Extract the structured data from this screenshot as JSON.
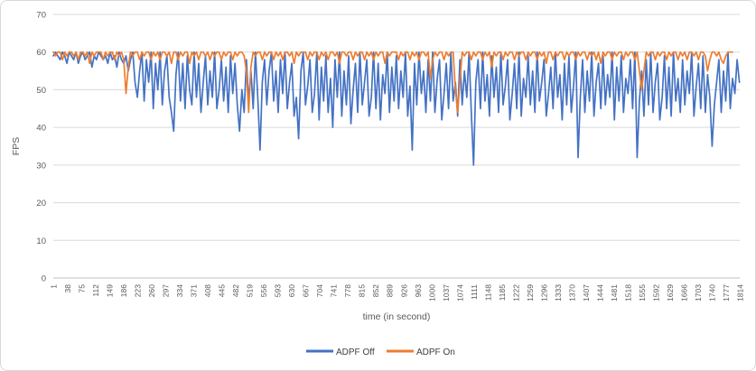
{
  "chart_data": {
    "type": "line",
    "title": "",
    "xlabel": "time (in second)",
    "ylabel": "FPS",
    "ylim": [
      0,
      70
    ],
    "grid": true,
    "legend_position": "bottom",
    "y_ticks": [
      0,
      10,
      20,
      30,
      40,
      50,
      60,
      70
    ],
    "x_tick_labels": [
      "1",
      "38",
      "75",
      "112",
      "149",
      "186",
      "223",
      "260",
      "297",
      "334",
      "371",
      "408",
      "445",
      "482",
      "519",
      "556",
      "593",
      "630",
      "667",
      "704",
      "741",
      "778",
      "815",
      "852",
      "889",
      "926",
      "963",
      "1000",
      "1037",
      "1074",
      "1111",
      "1148",
      "1185",
      "1222",
      "1259",
      "1296",
      "1333",
      "1370",
      "1407",
      "1444",
      "1481",
      "1518",
      "1555",
      "1592",
      "1629",
      "1666",
      "1703",
      "1740",
      "1777",
      "1814"
    ],
    "x_tick_step": 37,
    "x_start": 1,
    "x_step": 6,
    "x_max": 1814,
    "colors": {
      "grid": "#d9d9d9",
      "axis": "#bfbfbf",
      "text": "#595959"
    },
    "series": [
      {
        "name": "ADPF Off",
        "color": "#4472C4",
        "values": [
          59,
          60,
          59,
          58,
          60,
          59,
          57,
          60,
          59,
          58,
          60,
          57,
          59,
          60,
          58,
          59,
          60,
          56,
          59,
          58,
          60,
          59,
          58,
          59,
          57,
          60,
          58,
          59,
          56,
          60,
          58,
          57,
          59,
          55,
          58,
          60,
          52,
          48,
          55,
          60,
          47,
          58,
          52,
          60,
          45,
          57,
          50,
          60,
          46,
          55,
          59,
          48,
          44,
          39,
          54,
          60,
          47,
          57,
          45,
          59,
          50,
          46,
          60,
          48,
          57,
          44,
          52,
          59,
          46,
          55,
          48,
          60,
          45,
          50,
          58,
          47,
          56,
          44,
          59,
          49,
          57,
          46,
          39,
          50,
          44,
          58,
          47,
          55,
          45,
          60,
          48,
          34,
          52,
          58,
          46,
          55,
          60,
          47,
          55,
          44,
          58,
          49,
          60,
          45,
          52,
          57,
          43,
          48,
          37,
          55,
          60,
          46,
          51,
          58,
          44,
          49,
          60,
          42,
          56,
          47,
          59,
          44,
          53,
          40,
          58,
          48,
          60,
          43,
          55,
          46,
          59,
          41,
          50,
          57,
          44,
          60,
          46,
          52,
          58,
          43,
          48,
          60,
          45,
          57,
          42,
          54,
          49,
          60,
          44,
          56,
          47,
          59,
          45,
          55,
          48,
          60,
          43,
          51,
          34,
          57,
          46,
          60,
          49,
          55,
          44,
          58,
          47,
          60,
          44,
          53,
          58,
          42,
          49,
          57,
          45,
          60,
          47,
          52,
          43,
          58,
          46,
          55,
          48,
          60,
          44,
          30,
          52,
          58,
          45,
          60,
          47,
          54,
          43,
          59,
          48,
          56,
          44,
          60,
          46,
          51,
          58,
          42,
          49,
          57,
          45,
          60,
          43,
          53,
          48,
          59,
          46,
          55,
          44,
          60,
          47,
          52,
          58,
          43,
          49,
          56,
          45,
          60,
          48,
          54,
          42,
          57,
          46,
          59,
          44,
          51,
          60,
          32,
          48,
          58,
          44,
          55,
          47,
          60,
          43,
          52,
          57,
          45,
          59,
          46,
          54,
          48,
          60,
          42,
          56,
          47,
          59,
          44,
          53,
          49,
          58,
          45,
          60,
          32,
          47,
          55,
          43,
          58,
          46,
          60,
          44,
          52,
          57,
          42,
          48,
          59,
          45,
          56,
          43,
          60,
          47,
          53,
          44,
          58,
          46,
          55,
          49,
          60,
          43,
          51,
          57,
          45,
          59,
          44,
          54,
          48,
          35,
          46,
          52,
          58,
          44,
          55,
          47,
          60,
          45,
          53,
          49,
          58,
          52
        ]
      },
      {
        "name": "ADPF On",
        "color": "#ED7D31",
        "values": [
          60,
          59,
          60,
          60,
          58,
          60,
          59,
          60,
          60,
          59,
          60,
          58,
          60,
          60,
          59,
          60,
          57,
          60,
          59,
          60,
          60,
          60,
          58,
          60,
          59,
          60,
          60,
          58,
          60,
          59,
          60,
          58,
          49,
          56,
          60,
          59,
          60,
          60,
          58,
          60,
          59,
          60,
          60,
          58,
          60,
          59,
          60,
          58,
          60,
          60,
          59,
          60,
          57,
          60,
          60,
          58,
          60,
          59,
          60,
          60,
          57,
          60,
          59,
          60,
          58,
          60,
          60,
          59,
          60,
          58,
          60,
          59,
          60,
          60,
          58,
          60,
          59,
          60,
          60,
          58,
          60,
          59,
          60,
          60,
          59,
          55,
          44,
          56,
          60,
          59,
          60,
          60,
          58,
          60,
          59,
          60,
          60,
          58,
          60,
          59,
          60,
          58,
          60,
          60,
          59,
          60,
          57,
          60,
          59,
          60,
          60,
          60,
          58,
          60,
          59,
          60,
          60,
          58,
          60,
          59,
          60,
          58,
          60,
          60,
          59,
          60,
          57,
          60,
          60,
          59,
          60,
          60,
          58,
          60,
          59,
          60,
          60,
          58,
          60,
          59,
          60,
          58,
          60,
          59,
          60,
          60,
          57,
          60,
          59,
          60,
          60,
          60,
          58,
          60,
          59,
          60,
          60,
          58,
          60,
          59,
          60,
          58,
          60,
          60,
          59,
          60,
          53,
          58,
          60,
          59,
          60,
          60,
          58,
          60,
          59,
          60,
          60,
          50,
          44,
          52,
          60,
          59,
          60,
          60,
          58,
          60,
          59,
          60,
          60,
          58,
          60,
          59,
          60,
          56,
          60,
          59,
          60,
          60,
          58,
          60,
          59,
          60,
          60,
          58,
          60,
          59,
          60,
          60,
          58,
          60,
          59,
          60,
          60,
          58,
          60,
          59,
          60,
          57,
          60,
          60,
          58,
          60,
          59,
          60,
          60,
          58,
          60,
          59,
          60,
          60,
          58,
          60,
          59,
          60,
          60,
          58,
          60,
          59,
          60,
          58,
          60,
          57,
          60,
          59,
          60,
          60,
          58,
          60,
          59,
          60,
          60,
          58,
          60,
          59,
          60,
          60,
          58,
          60,
          55,
          50,
          55,
          60,
          59,
          60,
          60,
          58,
          60,
          59,
          60,
          60,
          58,
          60,
          59,
          60,
          60,
          58,
          60,
          59,
          60,
          58,
          60,
          60,
          59,
          60,
          58,
          60,
          60,
          59,
          55,
          58,
          60,
          60,
          59,
          60,
          58,
          57,
          59,
          60,
          60,
          60,
          null,
          null,
          null
        ]
      }
    ]
  }
}
